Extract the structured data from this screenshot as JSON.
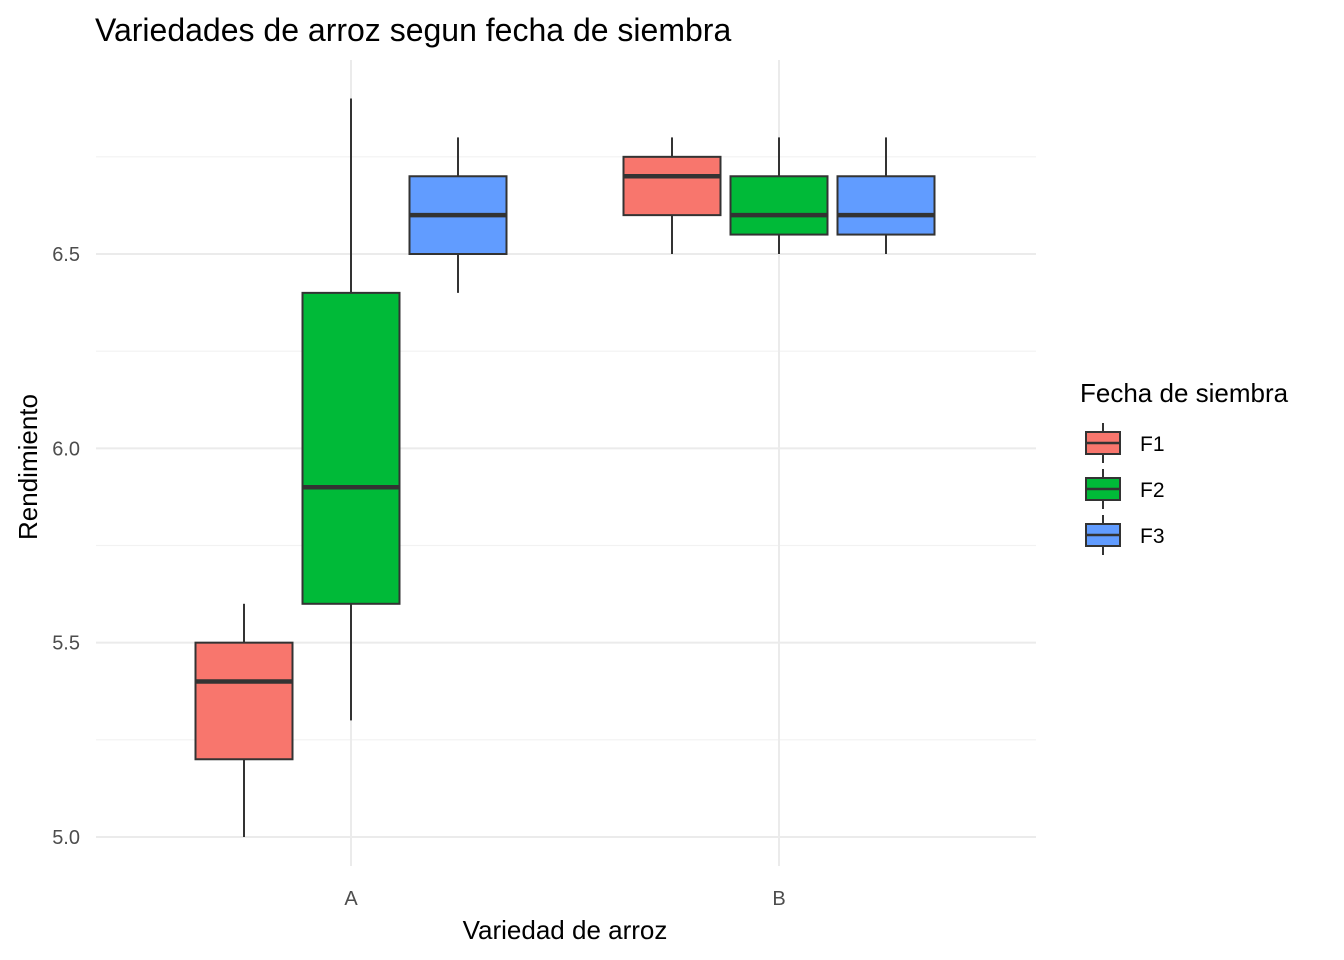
{
  "chart_data": {
    "type": "boxplot",
    "title": "Variedades de arroz segun fecha de siembra",
    "xlabel": "Variedad de arroz",
    "ylabel": "Rendimiento",
    "categories": [
      "A",
      "B"
    ],
    "ylim": [
      4.85,
      6.95
    ],
    "yticks": [
      5.0,
      5.5,
      6.0,
      6.5
    ],
    "ytick_labels": [
      "5.0",
      "5.5",
      "6.0",
      "6.5"
    ],
    "grid": true,
    "legend": {
      "title": "Fecha de siembra",
      "position": "right"
    },
    "series": [
      {
        "name": "F1",
        "color": "#F8766D",
        "boxes": [
          {
            "category": "A",
            "min": 5.0,
            "q1": 5.2,
            "median": 5.4,
            "q3": 5.5,
            "max": 5.6
          },
          {
            "category": "B",
            "min": 6.5,
            "q1": 6.6,
            "median": 6.7,
            "q3": 6.75,
            "max": 6.8
          }
        ]
      },
      {
        "name": "F2",
        "color": "#00BA38",
        "boxes": [
          {
            "category": "A",
            "min": 5.3,
            "q1": 5.6,
            "median": 5.9,
            "q3": 6.4,
            "max": 6.9
          },
          {
            "category": "B",
            "min": 6.5,
            "q1": 6.55,
            "median": 6.6,
            "q3": 6.7,
            "max": 6.8
          }
        ]
      },
      {
        "name": "F3",
        "color": "#619CFF",
        "boxes": [
          {
            "category": "A",
            "min": 6.4,
            "q1": 6.5,
            "median": 6.6,
            "q3": 6.7,
            "max": 6.8
          },
          {
            "category": "B",
            "min": 6.5,
            "q1": 6.55,
            "median": 6.6,
            "q3": 6.7,
            "max": 6.8
          }
        ]
      }
    ]
  }
}
